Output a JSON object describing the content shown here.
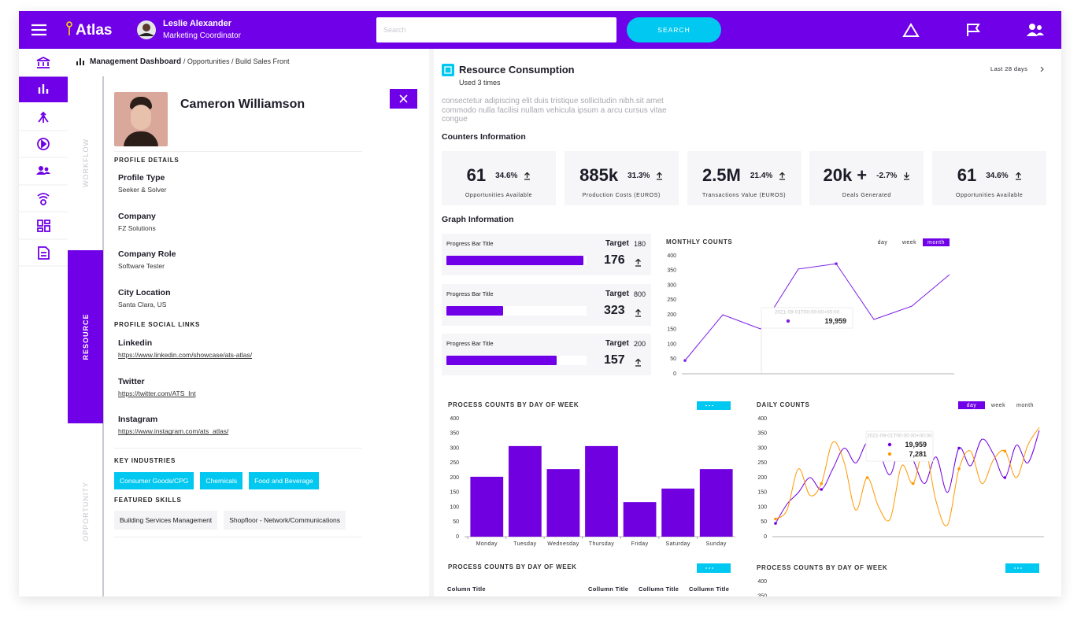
{
  "header": {
    "logo": "Atlas",
    "user_name": "Leslie Alexander",
    "user_role": "Marketing Coordinator",
    "search_placeholder": "Search",
    "search_button": "SEARCH"
  },
  "breadcrumb": {
    "current": "Management Dashboard",
    "path": "/ Opportunities / Build Sales Front"
  },
  "tabs": [
    "WORKFLOW",
    "RESOURCE",
    "OPPORTUNITY"
  ],
  "active_tab": "RESOURCE",
  "profile": {
    "name": "Cameron Williamson",
    "details_heading": "PROFILE DETAILS",
    "details": [
      {
        "label": "Profile Type",
        "value": "Seeker & Solver"
      },
      {
        "label": "Company",
        "value": "FZ Solutions"
      },
      {
        "label": "Company Role",
        "value": "Software Tester"
      },
      {
        "label": "City Location",
        "value": "Santa Clara, US"
      }
    ],
    "social_heading": "PROFILE SOCIAL LINKS",
    "social": [
      {
        "label": "Linkedin",
        "url": "https://www.linkedin.com/showcase/ats-atlas/"
      },
      {
        "label": "Twitter",
        "url": "https://twitter.com/ATS_Int"
      },
      {
        "label": "Instagram",
        "url": "https://www.instagram.com/ats_atlas/"
      }
    ],
    "industries_heading": "KEY INDUSTRIES",
    "industries": [
      "Consumer Goods/CPG",
      "Chemicals",
      "Food and Beverage"
    ],
    "skills_heading": "FEATURED SKILLS",
    "skills": [
      "Building Services Management",
      "Shopfloor - Network/Communications"
    ]
  },
  "resource": {
    "title": "Resource Consumption",
    "subtitle": "Used 3 times",
    "period": "Last 28 days",
    "description": "consectetur adipiscing elit duis tristique sollicitudin nibh.sit amet commodo nulla facilisi nullam vehicula ipsum a arcu cursus vitae congue",
    "counters_heading": "Counters Information",
    "counters": [
      {
        "value": "61",
        "change": "34.6%",
        "label": "Opportunities Available"
      },
      {
        "value": "885k",
        "change": "31.3%",
        "label": "Production Costs (EUROS)"
      },
      {
        "value": "2.5M",
        "change": "21.4%",
        "label": "Transactions Value (EUROS)"
      },
      {
        "value": "20k +",
        "change": "-2.7%",
        "label": "Deals Generated"
      },
      {
        "value": "61",
        "change": "34.6%",
        "label": "Opportunities Available"
      }
    ],
    "graph_heading": "Graph Information",
    "progress": [
      {
        "title": "Progress Bar Title",
        "target_label": "Target",
        "target": 180,
        "value": 176
      },
      {
        "title": "Progress Bar Title",
        "target_label": "Target",
        "target": 800,
        "value": 323
      },
      {
        "title": "Progress Bar Title",
        "target_label": "Target",
        "target": 200,
        "value": 157
      }
    ]
  },
  "chart_data": [
    {
      "type": "line",
      "title": "MONTHLY COUNTS",
      "tabs": [
        "day",
        "week",
        "month"
      ],
      "active_tab": "month",
      "values": [
        45,
        200,
        152,
        355,
        373,
        184,
        229,
        336
      ],
      "color": "#7b1fe8",
      "ylim": [
        0,
        400
      ],
      "yticks": [
        0,
        50,
        100,
        150,
        200,
        250,
        300,
        350,
        400
      ],
      "tooltip": {
        "label": "2021-09-01T00:00:00+00:00",
        "values": [
          "19,959"
        ]
      }
    },
    {
      "type": "bar",
      "title": "PROCESS COUNTS BY DAY OF WEEK",
      "categories": [
        "Monday",
        "Tuesday",
        "Wednesday",
        "Thursday",
        "Friday",
        "Saturday",
        "Sunday"
      ],
      "values": [
        203,
        307,
        229,
        307,
        117,
        163,
        229
      ],
      "color": "#7000e0",
      "ylim": [
        0,
        400
      ],
      "yticks": [
        0,
        50,
        100,
        150,
        200,
        250,
        300,
        350,
        400
      ]
    },
    {
      "type": "line",
      "title": "DAILY COUNTS",
      "tabs": [
        "day",
        "week",
        "month"
      ],
      "active_tab": "day",
      "smooth": true,
      "series": [
        {
          "color": "#7000e0",
          "values": [
            45,
            110,
            150,
            200,
            160,
            230,
            300,
            250,
            320,
            290,
            210,
            330,
            260,
            180,
            270,
            150,
            300,
            240,
            330,
            280,
            200,
            310,
            250,
            360
          ]
        },
        {
          "color": "#ff9800",
          "values": [
            60,
            90,
            230,
            140,
            180,
            320,
            250,
            90,
            200,
            100,
            60,
            240,
            180,
            300,
            120,
            40,
            230,
            290,
            180,
            260,
            290,
            200,
            310,
            370
          ]
        }
      ],
      "ylim": [
        0,
        400
      ],
      "yticks": [
        0,
        50,
        100,
        150,
        200,
        250,
        300,
        350,
        400
      ],
      "tooltip": {
        "label": "2021-09-01T00:00:00+00:00",
        "values": [
          "19,959",
          "7,281"
        ]
      }
    },
    {
      "type": "line",
      "title": "PROCESS COUNTS BY DAY OF WEEK",
      "ylim": [
        0,
        400
      ],
      "yticks": [
        350,
        400
      ]
    }
  ],
  "table": {
    "title": "PROCESS COUNTS BY DAY OF WEEK",
    "columns": [
      "Column Title",
      "Collumn Title",
      "Collumn Title",
      "Collumn Title"
    ]
  }
}
